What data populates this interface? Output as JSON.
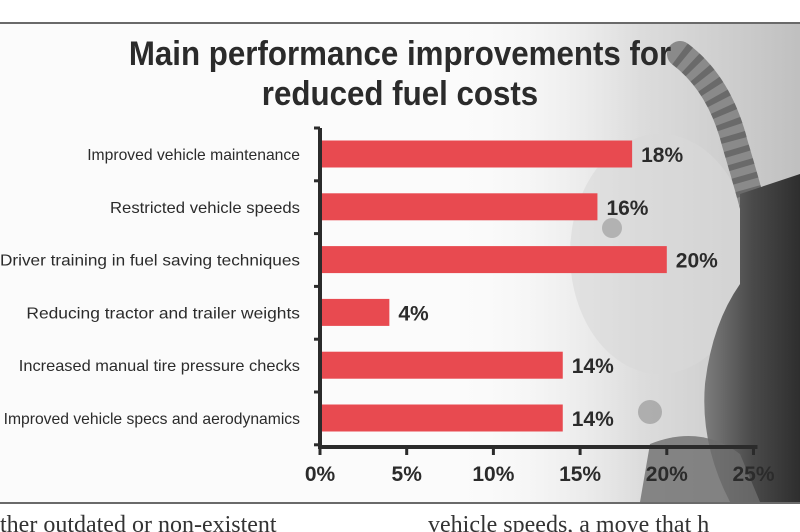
{
  "chart_data": {
    "type": "bar",
    "orientation": "horizontal",
    "title": "Main performance improvements for reduced fuel costs",
    "title_lines": [
      "Main performance improvements for",
      "reduced fuel costs"
    ],
    "categories": [
      "Improved vehicle maintenance",
      "Restricted vehicle speeds",
      "Driver training in fuel saving techniques",
      "Reducing tractor and trailer weights",
      "Increased manual tire pressure checks",
      "Improved vehicle specs and aerodynamics"
    ],
    "values": [
      18,
      16,
      20,
      4,
      14,
      14
    ],
    "value_labels": [
      "18%",
      "16%",
      "20%",
      "4%",
      "14%",
      "14%"
    ],
    "xlim": [
      0,
      25
    ],
    "xticks": [
      0,
      5,
      10,
      15,
      20,
      25
    ],
    "xtick_labels": [
      "0%",
      "5%",
      "10%",
      "15%",
      "20%",
      "25%"
    ],
    "xlabel": "",
    "ylabel": "",
    "bar_color": "#e84a50",
    "grid": false,
    "legend": "none"
  },
  "article": {
    "col1": "ther outdated or non-existent",
    "col2": "vehicle speeds, a move that h"
  }
}
